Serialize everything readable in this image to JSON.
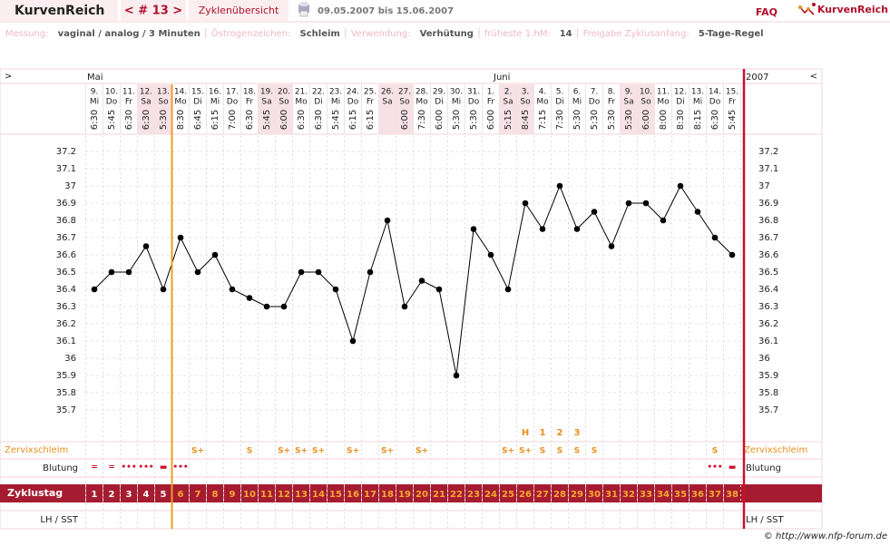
{
  "header": {
    "logo": "KurvenReich",
    "cycle_nav": "< # 13 >",
    "overview": "Zyklenübersicht",
    "date_range": "09.05.2007 bis 15.06.2007",
    "faq": "FAQ",
    "logo_right": "KurvenReich"
  },
  "info": [
    {
      "label": "Messung:",
      "value": "vaginal / analog / 3 Minuten"
    },
    {
      "label": "Östrogenzeichen:",
      "value": "Schleim"
    },
    {
      "label": "Verwendung:",
      "value": "Verhütung"
    },
    {
      "label": "früheste 1.hM:",
      "value": "14"
    },
    {
      "label": "Freigabe Zyklusanfang:",
      "value": "5-Tage-Regel"
    }
  ],
  "chart_data": {
    "type": "line",
    "nav_left": ">",
    "nav_right": "<",
    "year": "2007",
    "months": [
      "Mai",
      "Juni"
    ],
    "dates": [
      "9.",
      "10.",
      "11.",
      "12.",
      "13.",
      "14.",
      "15.",
      "16.",
      "17.",
      "18.",
      "19.",
      "20.",
      "21.",
      "22.",
      "23.",
      "24.",
      "25.",
      "26.",
      "27.",
      "28.",
      "29.",
      "30.",
      "31.",
      "1.",
      "2.",
      "3.",
      "4.",
      "5.",
      "6.",
      "7.",
      "8.",
      "9.",
      "10.",
      "11.",
      "12.",
      "13.",
      "14.",
      "15."
    ],
    "weekdays": [
      "Mi",
      "Do",
      "Fr",
      "Sa",
      "So",
      "Mo",
      "Di",
      "Mi",
      "Do",
      "Fr",
      "Sa",
      "So",
      "Mo",
      "Di",
      "Mi",
      "Do",
      "Fr",
      "Sa",
      "So",
      "Mo",
      "Di",
      "Mi",
      "Do",
      "Fr",
      "Sa",
      "So",
      "Mo",
      "Di",
      "Mi",
      "Do",
      "Fr",
      "Sa",
      "So",
      "Mo",
      "Di",
      "Mi",
      "Do",
      "Fr"
    ],
    "times": [
      "6:30",
      "5:45",
      "6:30",
      "6:30",
      "5:30",
      "8:30",
      "6:45",
      "6:15",
      "7:00",
      "6:30",
      "5:45",
      "6:00",
      "6:30",
      "6:30",
      "5:45",
      "6:15",
      "6:15",
      null,
      "6:00",
      "7:30",
      "6:00",
      "5:30",
      "5:30",
      "6:00",
      "5:15",
      "8:45",
      "7:15",
      "7:30",
      "5:30",
      "5:30",
      "5:30",
      "5:30",
      "6:00",
      "8:00",
      "8:30",
      "8:15",
      "6:30",
      "5:45"
    ],
    "values": [
      36.4,
      36.5,
      36.5,
      36.65,
      36.4,
      36.7,
      36.5,
      36.6,
      36.4,
      36.35,
      36.3,
      36.3,
      36.5,
      36.5,
      36.4,
      36.1,
      36.5,
      36.8,
      36.3,
      36.45,
      36.4,
      35.9,
      36.75,
      36.6,
      36.4,
      36.9,
      36.75,
      37.0,
      36.75,
      36.85,
      36.65,
      36.9,
      36.9,
      36.8,
      37.0,
      36.85,
      36.7,
      36.6
    ],
    "color": "#000000",
    "ylim": [
      35.7,
      37.2
    ],
    "yticks": [
      37.2,
      37.1,
      37,
      36.9,
      36.8,
      36.7,
      36.6,
      36.5,
      36.4,
      36.3,
      36.2,
      36.1,
      36,
      35.9,
      35.8,
      35.7
    ],
    "grid": true,
    "peak_markers": [
      null,
      null,
      null,
      null,
      null,
      null,
      null,
      null,
      null,
      null,
      null,
      null,
      null,
      null,
      null,
      null,
      null,
      null,
      null,
      null,
      null,
      null,
      null,
      null,
      null,
      "H",
      "1",
      "2",
      "3",
      null,
      null,
      null,
      null,
      null,
      null,
      null,
      null,
      null
    ],
    "cervix_label": "Zervixschleim",
    "cervix": [
      null,
      null,
      null,
      null,
      null,
      null,
      "S+",
      null,
      null,
      "S",
      null,
      "S+",
      "S+",
      "S+",
      null,
      "S+",
      null,
      "S+",
      null,
      "S+",
      null,
      null,
      null,
      null,
      "S+",
      "S+",
      "S",
      "S",
      "S",
      "S",
      null,
      null,
      null,
      null,
      null,
      null,
      "S",
      null
    ],
    "bleeding_label": "Blutung",
    "bleeding": [
      "=",
      "=",
      "•••",
      "•••",
      "▬",
      "•••",
      null,
      null,
      null,
      null,
      null,
      null,
      null,
      null,
      null,
      null,
      null,
      null,
      null,
      null,
      null,
      null,
      null,
      null,
      null,
      null,
      null,
      null,
      null,
      null,
      null,
      null,
      null,
      null,
      null,
      null,
      "•••",
      "▬"
    ],
    "cycle_label": "Zyklustag",
    "cycle_days": [
      1,
      2,
      3,
      4,
      5,
      6,
      7,
      8,
      9,
      10,
      11,
      12,
      13,
      14,
      15,
      16,
      17,
      18,
      19,
      20,
      21,
      22,
      23,
      24,
      25,
      26,
      27,
      28,
      29,
      30,
      31,
      32,
      33,
      34,
      35,
      36,
      37,
      38
    ],
    "lh_label": "LH / SST"
  },
  "footer": "© http://www.nfp-forum.de"
}
